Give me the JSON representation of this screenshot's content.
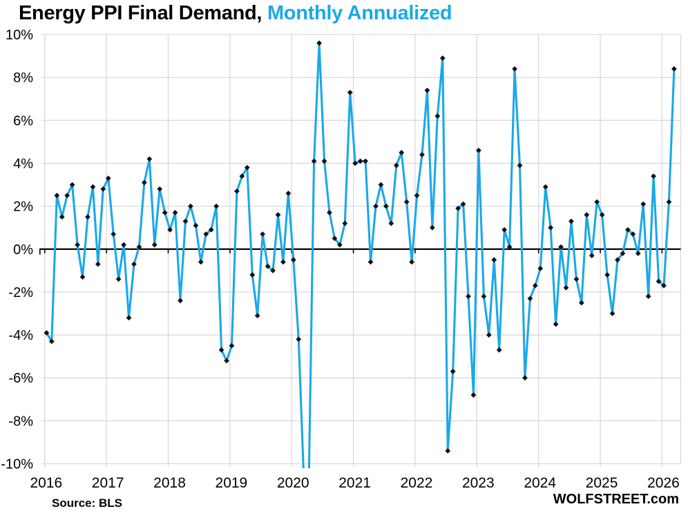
{
  "page": {
    "background": "#FFFFFF"
  },
  "header": {
    "title_main": "Energy PPI Final Demand, ",
    "title_accent": "Monthly Annualized",
    "accent_color": "#1BA8E8"
  },
  "footer": {
    "source": "Source: BLS",
    "brand": "WOLFSTREET.com"
  },
  "chart_data": {
    "type": "line",
    "title": "Energy PPI Final Demand, Monthly Annualized",
    "series_name": "Energy PPI Final Demand, month-to-month change annualized (%)",
    "frequency": "monthly",
    "start_month": "2016-01",
    "end_month": "2026-03",
    "x_tick_labels": [
      "2016",
      "2017",
      "2018",
      "2019",
      "2020",
      "2021",
      "2022",
      "2023",
      "2024",
      "2025",
      "2026"
    ],
    "y_tick_labels": [
      "10%",
      "8%",
      "6%",
      "4%",
      "2%",
      "0%",
      "-2%",
      "-4%",
      "-6%",
      "-8%",
      "-10%"
    ],
    "ylim": [
      -10,
      10
    ],
    "y_step": 2,
    "grid": true,
    "legend_position": "none",
    "line_color": "#1BA8E8",
    "marker_color": "#111111",
    "marker_shape": "diamond",
    "zero_line": true,
    "offscale_note": "March and April 2020 plunge below -10% and are clipped at the plot bottom edge",
    "values": [
      -3.9,
      -4.3,
      2.5,
      1.5,
      2.5,
      3.0,
      0.2,
      -1.3,
      1.5,
      2.9,
      -0.7,
      2.8,
      3.3,
      0.7,
      -1.4,
      0.2,
      -3.2,
      -0.7,
      0.1,
      3.1,
      4.2,
      0.2,
      2.8,
      1.7,
      0.9,
      1.7,
      -2.4,
      1.3,
      2.0,
      1.1,
      -0.6,
      0.7,
      0.9,
      2.0,
      -4.7,
      -5.2,
      -4.5,
      2.7,
      3.4,
      3.8,
      -1.2,
      -3.1,
      0.7,
      -0.8,
      -1.0,
      1.6,
      -0.6,
      2.6,
      -0.5,
      -4.2,
      -10.6,
      -10.6,
      4.1,
      9.6,
      4.1,
      1.7,
      0.5,
      0.2,
      1.2,
      7.3,
      4.0,
      4.1,
      4.1,
      -0.6,
      2.0,
      3.0,
      2.0,
      1.2,
      3.9,
      4.5,
      2.2,
      -0.6,
      2.5,
      4.4,
      7.4,
      1.0,
      6.2,
      8.9,
      -9.4,
      -5.7,
      1.9,
      2.1,
      -2.2,
      -6.8,
      4.6,
      -2.2,
      -4.0,
      -0.5,
      -4.7,
      0.9,
      0.1,
      8.4,
      3.9,
      -6.0,
      -2.3,
      -1.7,
      -0.9,
      2.9,
      1.0,
      -3.5,
      0.1,
      -1.8,
      1.3,
      -1.4,
      -2.5,
      1.6,
      -0.3,
      2.2,
      1.6,
      -1.2,
      -3.0,
      -0.5,
      -0.2,
      0.9,
      0.7,
      -0.2,
      2.1,
      -2.2,
      3.4,
      -1.5,
      -1.7,
      2.2,
      8.4
    ]
  }
}
